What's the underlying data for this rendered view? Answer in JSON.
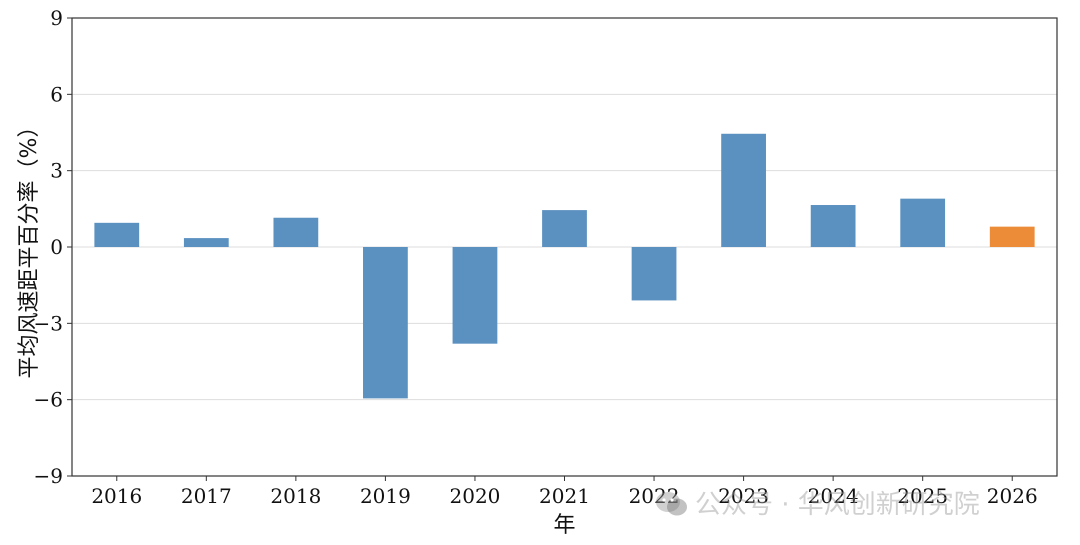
{
  "chart_data": {
    "type": "bar",
    "title": "",
    "xlabel": "年",
    "ylabel": "平均风速距平百分率（%）",
    "categories": [
      "2016",
      "2017",
      "2018",
      "2019",
      "2020",
      "2021",
      "2022",
      "2023",
      "2024",
      "2025",
      "2026"
    ],
    "values": [
      0.95,
      0.35,
      1.15,
      -5.95,
      -3.8,
      1.45,
      -2.1,
      4.45,
      1.65,
      1.9,
      0.8
    ],
    "bar_colors": [
      "#5b91c0",
      "#5b91c0",
      "#5b91c0",
      "#5b91c0",
      "#5b91c0",
      "#5b91c0",
      "#5b91c0",
      "#5b91c0",
      "#5b91c0",
      "#5b91c0",
      "#ec8b38"
    ],
    "ylim": [
      -9,
      9
    ],
    "yticks": [
      9,
      6,
      3,
      0,
      -3,
      -6,
      -9
    ],
    "ytick_labels": [
      "9",
      "6",
      "3",
      "0",
      "−3",
      "−6",
      "−9"
    ],
    "grid": "horizontal",
    "legend": "none"
  },
  "watermark": {
    "icon": "wechat-icon",
    "text": "公众号 · 华风创新研究院"
  }
}
